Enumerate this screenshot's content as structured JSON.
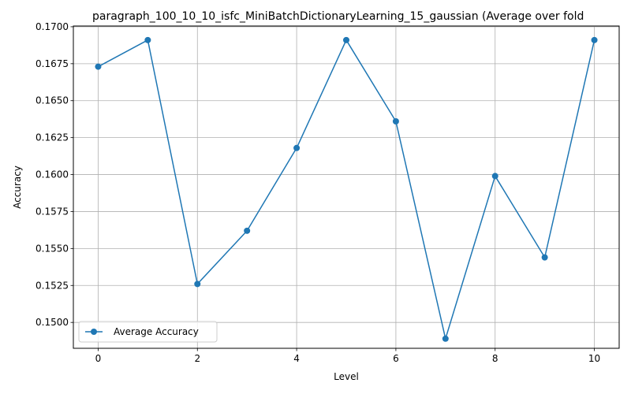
{
  "chart_data": {
    "type": "line",
    "title": "paragraph_100_10_10_isfc_MiniBatchDictionaryLearning_15_gaussian (Average over fold",
    "xlabel": "Level",
    "ylabel": "Accuracy",
    "x": [
      0,
      1,
      2,
      3,
      4,
      5,
      6,
      7,
      8,
      9,
      10
    ],
    "series": [
      {
        "name": "Average Accuracy",
        "values": [
          0.1673,
          0.1691,
          0.1526,
          0.1562,
          0.1618,
          0.1691,
          0.1636,
          0.1489,
          0.1599,
          0.1544,
          0.1691
        ],
        "color": "#1f77b4",
        "marker": "circle"
      }
    ],
    "xlim": [
      -0.5,
      10.5
    ],
    "ylim": [
      0.14825,
      0.17005
    ],
    "xticks": [
      0,
      2,
      4,
      6,
      8,
      10
    ],
    "xtick_labels": [
      "0",
      "2",
      "4",
      "6",
      "8",
      "10"
    ],
    "yticks": [
      0.15,
      0.1525,
      0.155,
      0.1575,
      0.16,
      0.1625,
      0.165,
      0.1675,
      0.17
    ],
    "ytick_labels": [
      "0.1500",
      "0.1525",
      "0.1550",
      "0.1575",
      "0.1600",
      "0.1625",
      "0.1650",
      "0.1675",
      "0.1700"
    ],
    "grid": true,
    "legend_position": "lower-left"
  }
}
